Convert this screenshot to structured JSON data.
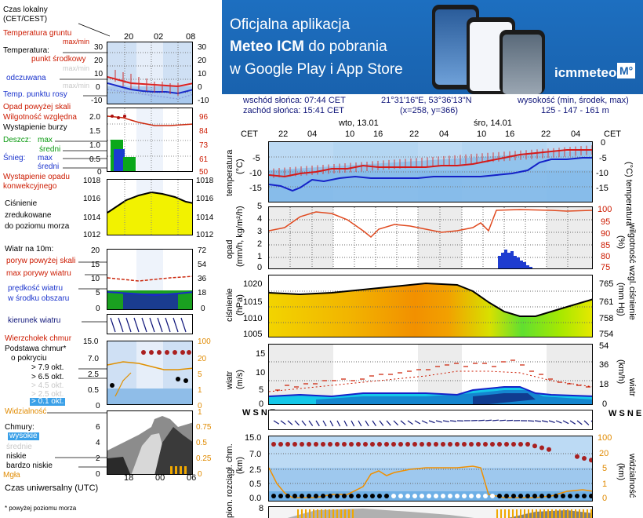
{
  "left": {
    "time_local_label": "Czas lokalny",
    "time_local_sub": "(CET/CEST)",
    "top_ticks": [
      "20",
      "02",
      "08"
    ],
    "soil_temp_label": "Temperatura gruntu",
    "soil_temp_sub": "max/min",
    "temperature_label": "Temperatura:",
    "mid_point_label": "punkt środkowy",
    "mid_point_sub": "max/min",
    "feels_label": "odczuwana",
    "feels_sub": "max/min",
    "dew_label": "Temp. punktu rosy",
    "temp_axis_left": [
      "30",
      "20",
      "10",
      "0",
      "-10"
    ],
    "temp_axis_right": [
      "30",
      "20",
      "10",
      "0",
      "-10"
    ],
    "precip_label": "Opad powyżej skali",
    "humidity_label": "Wilgotność względna",
    "storm_label": "Wystąpienie burzy",
    "rain_label": "Deszcz:",
    "rain_max": "max",
    "rain_mid": "średni",
    "snow_label": "Śnieg:",
    "snow_max": "max",
    "snow_mid": "średni",
    "conv_label": "Wystąpienie opadu",
    "conv_sub": "konwekcyjnego",
    "precip_axis_left": [
      "2.0",
      "1.5",
      "1.0",
      "0.5",
      "0"
    ],
    "precip_axis_right": [
      "96",
      "84",
      "73",
      "61",
      "50"
    ],
    "pressure_label": "Ciśnienie",
    "pressure_sub1": "zredukowane",
    "pressure_sub2": "do poziomu morza",
    "pressure_axis_left": [
      "1018",
      "1016",
      "1014",
      "1012"
    ],
    "pressure_axis_right": [
      "1018",
      "1016",
      "1014",
      "1012"
    ],
    "wind_label": "Wiatr na 10m:",
    "gust_over_label": "poryw powyżej skali",
    "gust_max_label": "max porywy wiatru",
    "wind_avg_label": "prędkość wiatru",
    "wind_avg_sub": "w środku obszaru",
    "wind_axis_left": [
      "20",
      "15",
      "10",
      "5",
      "0"
    ],
    "wind_axis_right": [
      "72",
      "54",
      "36",
      "18",
      "0"
    ],
    "wind_dir_label": "kierunek wiatru",
    "cloud_top_label": "Wierzchołek chmur",
    "cloud_base_label": "Podstawa chmur*",
    "cloud_base_sub": "o pokryciu",
    "okt": [
      "> 7.9 okt.",
      "> 6.5 okt.",
      "> 4.5 okt.",
      "> 2.5 okt.",
      "> 0.1 okt."
    ],
    "visibility_label": "Widzialność",
    "cloud_axis_left": [
      "15.0",
      "7.0",
      "2.5",
      "0.5",
      "0"
    ],
    "cloud_axis_right": [
      "100",
      "20",
      "5",
      "1",
      "0"
    ],
    "clouds_label": "Chmury:",
    "cl_high": "wysokie",
    "cl_mid": "średnie",
    "cl_low": "niskie",
    "cl_vlow": "bardzo niskie",
    "fog_label": "Mgła",
    "clouds_axis_left": [
      "6",
      "4",
      "2",
      "0"
    ],
    "clouds_axis_right": [
      "1",
      "0.75",
      "0.5",
      "0.25",
      "0"
    ],
    "utc_label": "Czas uniwersalny (UTC)",
    "bottom_ticks": [
      "18",
      "00",
      "06"
    ],
    "footnote": "* powyżej poziomu morza"
  },
  "banner": {
    "line1": "Oficjalna aplikacja",
    "line2_bold": "Meteo ICM",
    "line2_rest": " do pobrania",
    "line3": "w Google Play i App Store",
    "logo_text": "icmmeteo",
    "logo_badge": "M°"
  },
  "info": {
    "sunrise": "wschód słońca: 07:44 CET",
    "sunset": "zachód słońca: 15:41 CET",
    "coords": "21°31'16\"E, 53°36'13\"N",
    "grid": "(x=258, y=366)",
    "height_label": "wysokość (min, środek, max)",
    "height_values": "125 - 147 - 161 m"
  },
  "main": {
    "tz_left": "CET",
    "tz_right": "CET",
    "day1": "wto, 13.01",
    "day2": "śro, 14.01",
    "hour_ticks": [
      "22",
      "04",
      "10",
      "16",
      "22",
      "04",
      "10",
      "16",
      "22",
      "04"
    ],
    "temp_ylabel": "temperatura",
    "temp_unit": "(°C)",
    "temp_axis": [
      "0",
      "-5",
      "-10",
      "-15"
    ],
    "precip_ylabel": "opad",
    "precip_unit": "(mm/h, kg/m²/h)",
    "humid_ylabel": "wilgotność wzgl.",
    "humid_unit": "(%)",
    "precip_axis_left": [
      "5",
      "4",
      "3",
      "2",
      "1",
      "0"
    ],
    "humid_axis": [
      "100",
      "95",
      "90",
      "85",
      "80",
      "75"
    ],
    "press_ylabel": "ciśnienie",
    "press_unit": "(hPa)",
    "press_axis_left": [
      "1020",
      "1015",
      "1010",
      "1005"
    ],
    "press_axis_right": [
      "765",
      "761",
      "758",
      "754"
    ],
    "press_unit_r": "(mm Hg)",
    "wind_ylabel": "wiatr",
    "wind_unit": "(m/s)",
    "wind_axis_left": [
      "15",
      "10",
      "5",
      "0"
    ],
    "wind_axis_right": [
      "54",
      "36",
      "18",
      "0"
    ],
    "wind_unit_r": "(km/h)",
    "cloud_ylabel": "pion. rozciągł. chm.",
    "cloud_unit": "(km)",
    "vis_ylabel": "widzialność",
    "vis_unit": "(km)",
    "cloud_axis_left": [
      "15.0",
      "7.0",
      "2.5",
      "0.5",
      "0.0"
    ],
    "cloud_axis_right": [
      "100",
      "20",
      "5",
      "1",
      "0"
    ],
    "bottom_axis": [
      "8"
    ],
    "compass": "W S N E"
  }
}
